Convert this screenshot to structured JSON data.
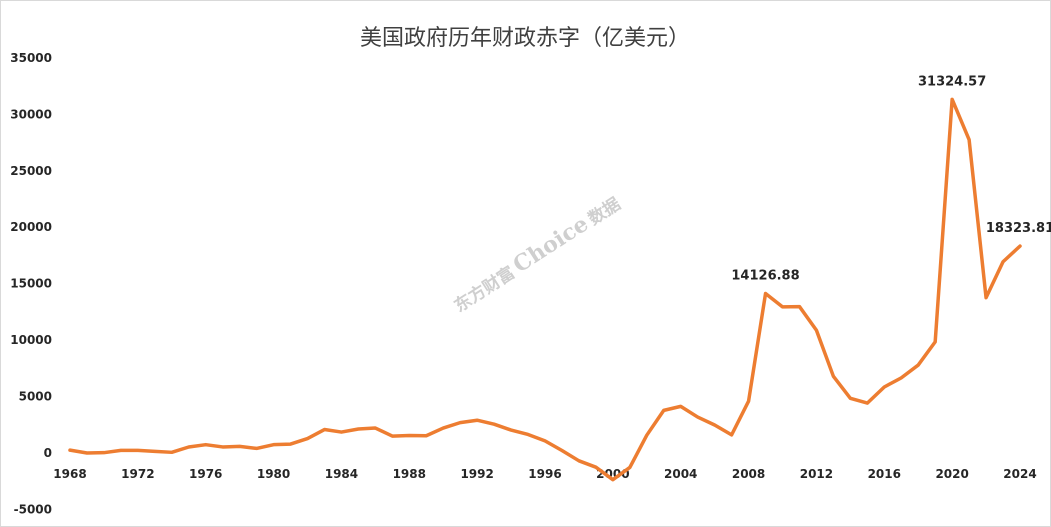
{
  "chart_data": {
    "type": "line",
    "title": "美国政府历年财政赤字（亿美元）",
    "xlabel": "",
    "ylabel": "",
    "ylim": [
      -5000,
      35000
    ],
    "yticks": [
      35000,
      30000,
      25000,
      20000,
      15000,
      10000,
      5000,
      0,
      -5000
    ],
    "xlim": [
      1968,
      2024
    ],
    "xticks": [
      1968,
      1972,
      1976,
      1980,
      1984,
      1988,
      1992,
      1996,
      2000,
      2004,
      2008,
      2012,
      2016,
      2020,
      2024
    ],
    "grid": false,
    "legend": "none",
    "line_color": "#ed7d31",
    "x": [
      1968,
      1969,
      1970,
      1971,
      1972,
      1973,
      1974,
      1975,
      1976,
      1977,
      1978,
      1979,
      1980,
      1981,
      1982,
      1983,
      1984,
      1985,
      1986,
      1987,
      1988,
      1989,
      1990,
      1991,
      1992,
      1993,
      1994,
      1995,
      1996,
      1997,
      1998,
      1999,
      2000,
      2001,
      2002,
      2003,
      2004,
      2005,
      2006,
      2007,
      2008,
      2009,
      2010,
      2011,
      2012,
      2013,
      2014,
      2015,
      2016,
      2017,
      2018,
      2019,
      2020,
      2021,
      2022,
      2023,
      2024
    ],
    "series": [
      {
        "values": [
          252,
          0,
          28,
          230,
          234,
          149,
          61,
          532,
          737,
          537,
          590,
          406,
          738,
          789,
          1279,
          2078,
          1854,
          2123,
          2210,
          1498,
          1552,
          1527,
          2210,
          2692,
          2904,
          2551,
          2032,
          1640,
          1072,
          219,
          -692,
          -1256,
          -2362,
          -1282,
          1578,
          3776,
          4128,
          3183,
          2482,
          1607,
          4586,
          14126.88,
          12941,
          12970,
          10870,
          6794,
          4846,
          4420,
          5848,
          6655,
          7790,
          9842,
          31324.57,
          27755,
          13757,
          16941,
          18323.81
        ]
      }
    ],
    "annotations": [
      {
        "x": 2009,
        "y": 14126.88,
        "text": "14126.88"
      },
      {
        "x": 2020,
        "y": 31324.57,
        "text": "31324.57"
      },
      {
        "x": 2024,
        "y": 18323.81,
        "text": "18323.81"
      }
    ],
    "watermark": {
      "brand": "东方财富",
      "name": "Choice",
      "suffix": "数据"
    }
  }
}
